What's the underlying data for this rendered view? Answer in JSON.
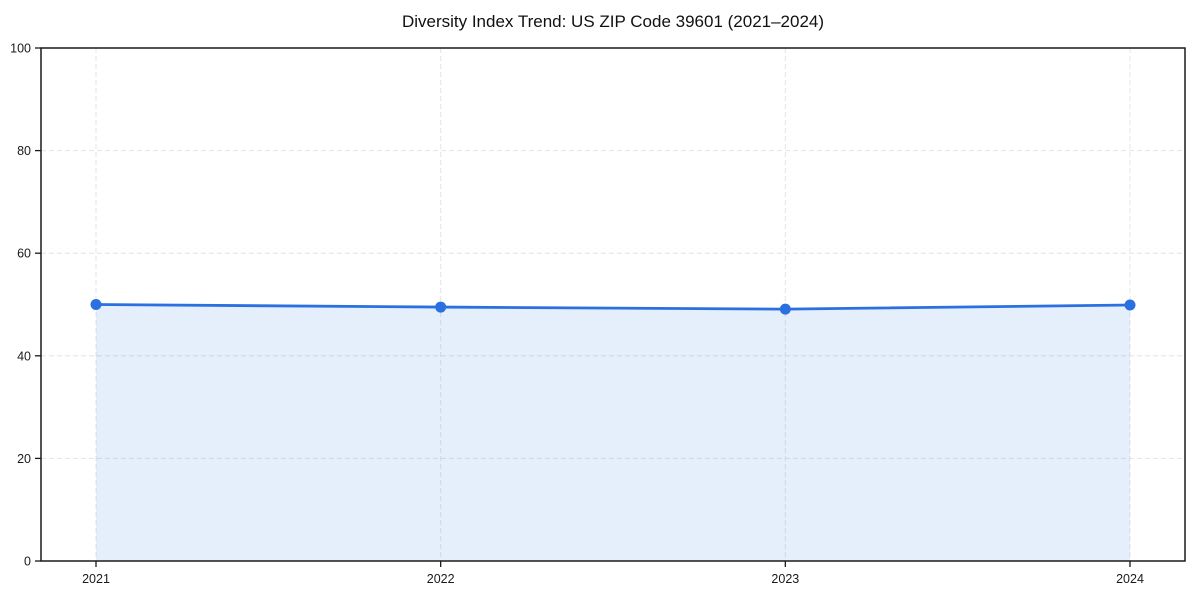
{
  "chart_title": "Diversity Index Trend: US ZIP Code 39601 (2021–2024)",
  "chart_data": {
    "type": "line",
    "title": "Diversity Index Trend: US ZIP Code 39601 (2021–2024)",
    "categories": [
      "2021",
      "2022",
      "2023",
      "2024"
    ],
    "series": [
      {
        "name": "Diversity Index",
        "values": [
          50.0,
          49.5,
          49.1,
          49.9
        ]
      }
    ],
    "xlabel": "",
    "ylabel": "",
    "ylim": [
      0,
      100
    ],
    "yticks": [
      0,
      20,
      40,
      60,
      80,
      100
    ],
    "grid": "dashed",
    "legend_position": "none",
    "area_fill": true,
    "marker": "circle",
    "colors": {
      "line": "#2b70e0",
      "marker": "#2b70e0",
      "fill": "rgba(43,112,224,0.12)",
      "grid": "#e4e4e4",
      "spine": "#1a1a1a",
      "text": "#1a1a1a",
      "background": "#ffffff"
    }
  }
}
